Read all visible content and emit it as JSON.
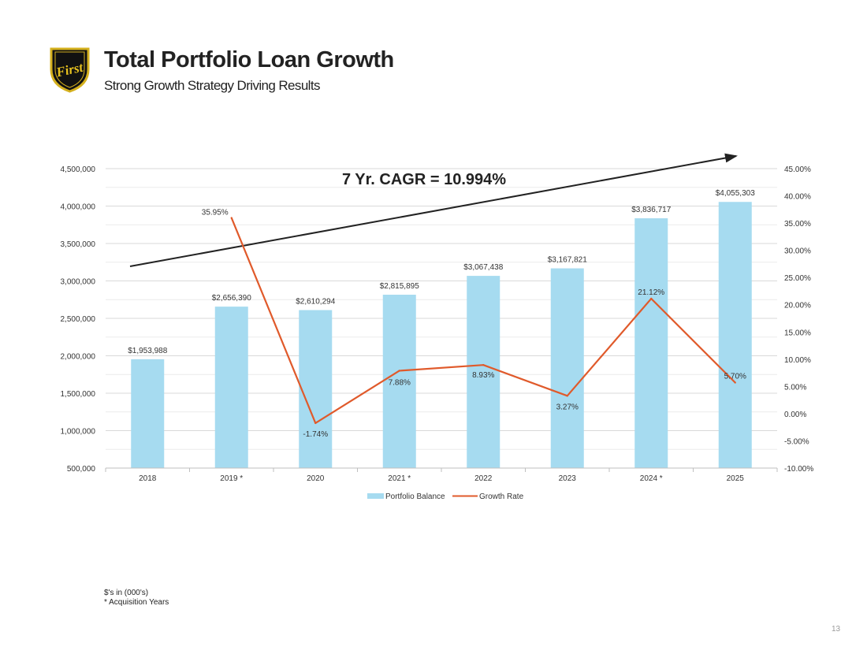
{
  "header": {
    "title": "Total Portfolio Loan Growth",
    "subtitle": "Strong Growth Strategy Driving Results",
    "logo_text": "First"
  },
  "chart_data": {
    "type": "bar",
    "categories": [
      "2018",
      "2019 *",
      "2020",
      "2021 *",
      "2022",
      "2023",
      "2024 *",
      "2025"
    ],
    "series": [
      {
        "name": "Portfolio Balance",
        "type": "bar",
        "axis": "left",
        "color": "#a6dbf0",
        "values": [
          1953988,
          2656390,
          2610294,
          2815895,
          3067438,
          3167821,
          3836717,
          4055303
        ],
        "labels": [
          "$1,953,988",
          "$2,656,390",
          "$2,610,294",
          "$2,815,895",
          "$3,067,438",
          "$3,167,821",
          "$3,836,717",
          "$4,055,303"
        ]
      },
      {
        "name": "Growth Rate",
        "type": "line",
        "axis": "right",
        "color": "#e05a2b",
        "x": [
          "2019 *",
          "2020",
          "2021 *",
          "2022",
          "2023",
          "2024 *",
          "2025"
        ],
        "values": [
          35.95,
          -1.74,
          7.88,
          8.93,
          3.27,
          21.12,
          5.7
        ],
        "labels": [
          "35.95%",
          "-1.74%",
          "7.88%",
          "8.93%",
          "3.27%",
          "21.12%",
          "5.70%"
        ]
      }
    ],
    "y_left": {
      "ylim": [
        500000,
        4500000
      ],
      "ticks": [
        500000,
        1000000,
        1500000,
        2000000,
        2500000,
        3000000,
        3500000,
        4000000,
        4500000
      ],
      "tick_labels": [
        "500,000",
        "1,000,000",
        "1,500,000",
        "2,000,000",
        "2,500,000",
        "3,000,000",
        "3,500,000",
        "4,000,000",
        "4,500,000"
      ]
    },
    "y_right": {
      "ylim": [
        -10,
        45
      ],
      "ticks": [
        -10,
        -5,
        0,
        5,
        10,
        15,
        20,
        25,
        30,
        35,
        40,
        45
      ],
      "tick_labels": [
        "-10.00%",
        "-5.00%",
        "0.00%",
        "5.00%",
        "10.00%",
        "15.00%",
        "20.00%",
        "25.00%",
        "30.00%",
        "35.00%",
        "40.00%",
        "45.00%"
      ]
    },
    "annotation": "7 Yr. CAGR = 10.994%",
    "grid": true,
    "legend": "bottom"
  },
  "footnotes": {
    "units": "$'s in (000's)",
    "acquisition": "* Acquisition Years"
  },
  "page_number": "13"
}
